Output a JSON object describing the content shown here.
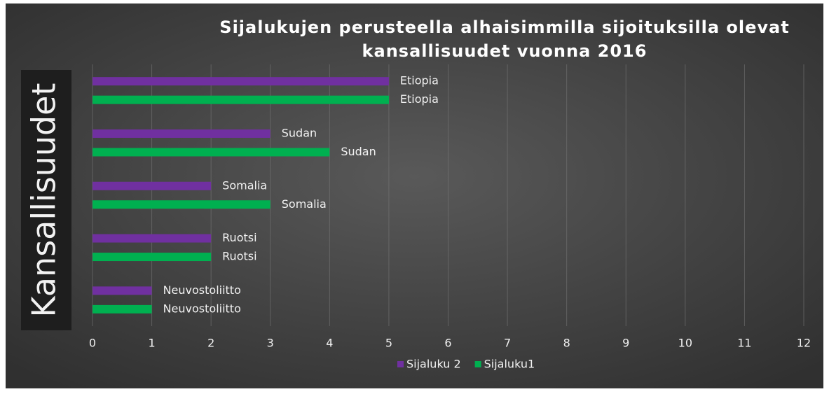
{
  "chart_data": {
    "type": "hbar",
    "title": "Sijalukujen perusteella alhaisimmilla sijoituksilla olevat kansallisuudet vuonna 2016",
    "y_label": "Kansallisuudet",
    "categories": [
      "Etiopia",
      "Sudan",
      "Somalia",
      "Ruotsi",
      "Neuvostoliitto"
    ],
    "series": [
      {
        "name": "Sijaluku 2",
        "color": "#7030a0",
        "values": [
          5,
          3,
          2,
          2,
          1
        ]
      },
      {
        "name": "Sijaluku1",
        "color": "#00b050",
        "values": [
          5,
          4,
          3,
          2,
          1
        ]
      }
    ],
    "xlim": [
      0,
      12
    ],
    "xticks": [
      0,
      1,
      2,
      3,
      4,
      5,
      6,
      7,
      8,
      9,
      10,
      11,
      12
    ],
    "grid": true,
    "legend": "bottom"
  }
}
